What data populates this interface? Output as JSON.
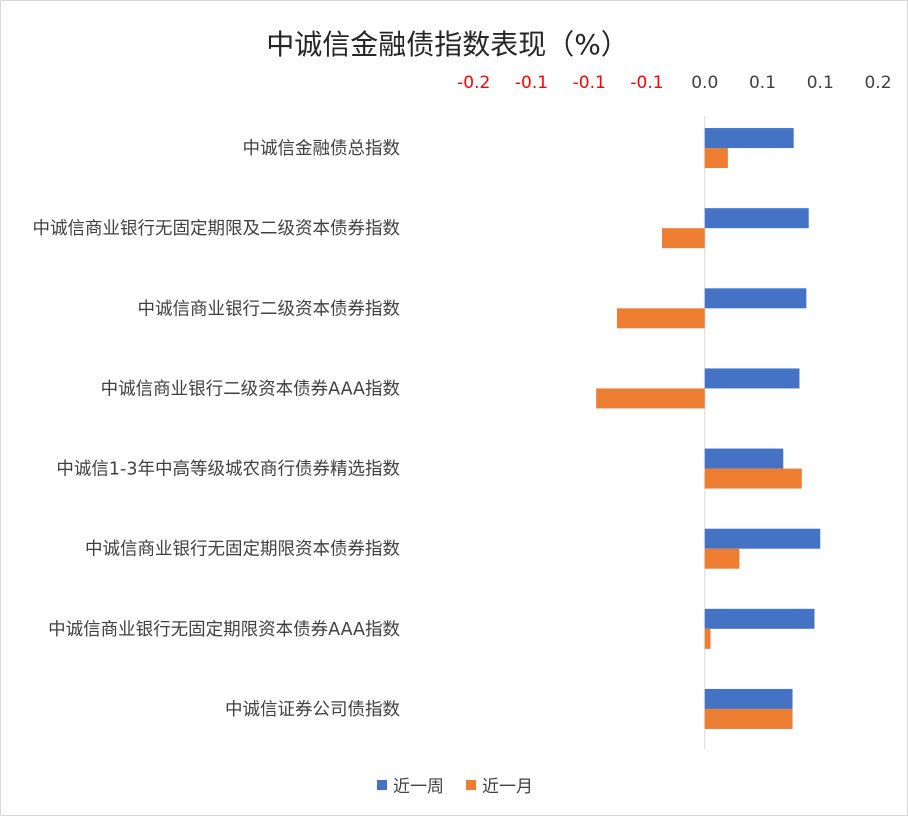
{
  "chart_data": {
    "type": "bar",
    "orientation": "horizontal",
    "title": "中诚信金融债指数表现（%）",
    "categories": [
      "中诚信金融债总指数",
      "中诚信商业银行无固定期限及二级资本债券指数",
      "中诚信商业银行二级资本债券指数",
      "中诚信商业银行二级资本债券AAA指数",
      "中诚信1-3年中高等级城农商行债券精选指数",
      "中诚信商业银行无固定期限资本债券指数",
      "中诚信商业银行无固定期限资本债券AAA指数",
      "中诚信证券公司债指数"
    ],
    "series": [
      {
        "name": "近一周",
        "color": "#4472C4",
        "values": [
          0.077,
          0.09,
          0.088,
          0.082,
          0.068,
          0.1,
          0.095,
          0.076
        ]
      },
      {
        "name": "近一月",
        "color": "#ED7D31",
        "values": [
          0.02,
          -0.037,
          -0.076,
          -0.094,
          0.084,
          0.03,
          0.005,
          0.076
        ]
      }
    ],
    "xlim": [
      -0.25,
      0.15
    ],
    "tick_values": [
      -0.2,
      -0.15,
      -0.1,
      -0.05,
      0.0,
      0.05,
      0.1,
      0.15
    ],
    "tick_labels": [
      "-0.2",
      "-0.1",
      "-0.1",
      "-0.1",
      "0.0",
      "0.1",
      "0.1",
      "0.2"
    ],
    "negative_tick_color": "#FF0000",
    "tick_color": "#404040",
    "axis_position": "top",
    "legend_position": "bottom",
    "grid": false
  }
}
